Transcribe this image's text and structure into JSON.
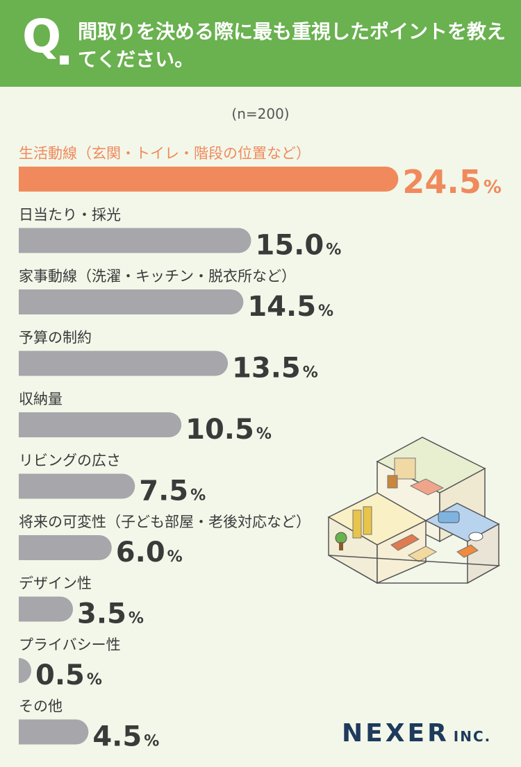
{
  "header": {
    "q_mark": "Q",
    "question": "間取りを決める際に最も重視したポイントを教えてください。"
  },
  "sample_size": "(n=200)",
  "colors": {
    "header_bg": "#6ab150",
    "background": "#f2f7e9",
    "highlight": "#f08a5d",
    "bar": "#a6a6ab",
    "text": "#3a3a3a",
    "logo": "#1e3a5c"
  },
  "chart_data": {
    "type": "bar",
    "orientation": "horizontal",
    "unit": "%",
    "categories": [
      "生活動線（玄関・トイレ・階段の位置など）",
      "日当たり・採光",
      "家事動線（洗濯・キッチン・脱衣所など）",
      "予算の制約",
      "収納量",
      "リビングの広さ",
      "将来の可変性（子ども部屋・老後対応など）",
      "デザイン性",
      "プライバシー性",
      "その他"
    ],
    "values": [
      24.5,
      15.0,
      14.5,
      13.5,
      10.5,
      7.5,
      6.0,
      3.5,
      0.5,
      4.5
    ],
    "value_labels": [
      "24.5",
      "15.0",
      "14.5",
      "13.5",
      "10.5",
      "7.5",
      "6.0",
      "3.5",
      "0.5",
      "4.5"
    ],
    "highlight_index": 0
  },
  "logo": {
    "main": "NEXER",
    "sub": "INC."
  }
}
